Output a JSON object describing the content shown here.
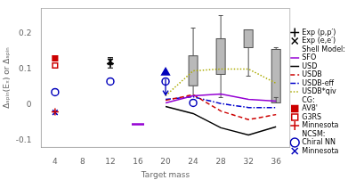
{
  "chart_data": {
    "type": "scatter",
    "xlabel": "Target mass",
    "ylabel": "Δₛₚᵢₙ(Eₓ) or Δₛₚᵢₙ",
    "xlim": [
      2,
      38
    ],
    "ylim": [
      -0.12,
      0.27
    ],
    "xticks": [
      4,
      8,
      12,
      16,
      20,
      24,
      28,
      32,
      36
    ],
    "yticks": [
      -0.1,
      {
        "value": -0.05,
        "label": null
      },
      0,
      {
        "value": 0.05,
        "label": null
      },
      0.1,
      {
        "value": 0.15,
        "label": null
      },
      0.2
    ],
    "grid": false,
    "legend": "right",
    "series": [
      {
        "name": "Exp (p,p′)",
        "type": "scatter",
        "marker": "plus",
        "color": "#000000",
        "x": [
          12
        ],
        "values": [
          0.115
        ],
        "errors": [
          0.012
        ]
      },
      {
        "name": "Exp (e,e′)",
        "type": "scatter",
        "marker": "x",
        "color": "#000000",
        "x": [
          12
        ],
        "values": [
          0.122
        ],
        "errors": [
          0.01
        ]
      },
      {
        "name": "SFO",
        "group": "Shell Model:",
        "type": "line",
        "line_style": "solid",
        "color": "#9400D3",
        "x": [
          20,
          24,
          28,
          32,
          36
        ],
        "values": [
          0.005,
          0.025,
          0.03,
          0.015,
          0.01
        ]
      },
      {
        "name": "USD",
        "group": "Shell Model:",
        "type": "line",
        "line_style": "solid",
        "color": "#000000",
        "x": [
          20,
          24,
          28,
          32,
          36
        ],
        "values": [
          -0.005,
          -0.025,
          -0.065,
          -0.085,
          -0.062
        ]
      },
      {
        "name": "USDB",
        "group": "Shell Model:",
        "type": "line",
        "line_style": "dashed",
        "color": "#CC0000",
        "x": [
          20,
          24,
          28,
          32,
          36
        ],
        "values": [
          0.012,
          0.028,
          -0.018,
          -0.042,
          -0.028
        ]
      },
      {
        "name": "USDB-eff",
        "group": "Shell Model:",
        "type": "line",
        "line_style": "dashdot",
        "color": "#0000CC",
        "x": [
          20,
          24,
          28,
          32,
          36
        ],
        "values": [
          0.015,
          0.022,
          0.003,
          -0.008,
          -0.008
        ]
      },
      {
        "name": "USDB*qiv",
        "group": "Shell Model:",
        "type": "line",
        "line_style": "dotted",
        "color": "#aaaa00",
        "x": [
          20,
          24,
          28,
          32,
          36
        ],
        "values": [
          0.025,
          0.095,
          0.1,
          0.1,
          0.06
        ]
      },
      {
        "name": "AV8'",
        "group": "CG:",
        "type": "scatter",
        "marker": "square",
        "color": "#CC0000",
        "x": [
          4
        ],
        "values": [
          0.13
        ]
      },
      {
        "name": "G3RS",
        "group": "CG:",
        "type": "scatter",
        "marker": "open_square",
        "color": "#CC0000",
        "x": [
          4
        ],
        "values": [
          0.11
        ]
      },
      {
        "name": "Minnesota",
        "group": "CG:",
        "type": "scatter",
        "marker": "plus",
        "color": "#CC0000",
        "x": [
          4
        ],
        "values": [
          -0.02
        ]
      },
      {
        "name": "Chiral NN",
        "group": "NCSM:",
        "type": "scatter",
        "marker": "open_circle",
        "color": "#0000BB",
        "x": [
          4,
          12,
          20,
          24
        ],
        "values": [
          0.035,
          0.065,
          0.065,
          0.005
        ]
      },
      {
        "name": "Minnesota",
        "group": "NCSM:",
        "type": "scatter",
        "marker": "x",
        "color": "#0000BB",
        "x": [
          4
        ],
        "values": [
          -0.022
        ]
      },
      {
        "type": "scatter",
        "marker": "dash",
        "color": "#9400D3",
        "x": [
          16
        ],
        "values": [
          -0.055
        ]
      },
      {
        "type": "scatter",
        "marker": "triangle",
        "color": "#0000BB",
        "x": [
          20
        ],
        "values": [
          0.09
        ]
      },
      {
        "type": "box",
        "color": "#505050",
        "x": [
          24,
          28,
          32,
          36
        ],
        "whisker_low": [
          0.025,
          0.02,
          0.08,
          0.02
        ],
        "box_low": [
          0.053,
          0.085,
          0.16,
          0.005
        ],
        "box_high": [
          0.137,
          0.185,
          0.21,
          0.155
        ],
        "whisker_high": [
          0.215,
          0.25,
          0.21,
          0.16
        ]
      }
    ],
    "annotations": [
      {
        "type": "arrow",
        "x": 20,
        "y": 0.09,
        "y_end": 0.027,
        "color": "#0000BB"
      }
    ]
  }
}
